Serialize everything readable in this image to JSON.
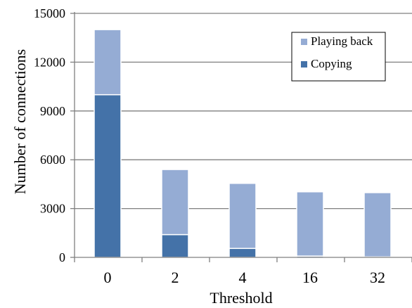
{
  "chart_data": {
    "type": "bar",
    "stacked": true,
    "title": "",
    "xlabel": "Threshold",
    "ylabel": "Number of connections",
    "categories": [
      "0",
      "2",
      "4",
      "16",
      "32"
    ],
    "series": [
      {
        "name": "Copying",
        "color": "#4472a8",
        "values": [
          10000,
          1400,
          550,
          80,
          30
        ]
      },
      {
        "name": "Playing back",
        "color": "#95acd4",
        "values": [
          4000,
          4000,
          4000,
          3950,
          3950
        ]
      }
    ],
    "ylim": [
      0,
      15000
    ],
    "yticks": [
      "0",
      "3000",
      "6000",
      "9000",
      "12000",
      "15000"
    ],
    "grid": true,
    "legend_position": "top-right",
    "legend_order": [
      "Playing back",
      "Copying"
    ]
  }
}
